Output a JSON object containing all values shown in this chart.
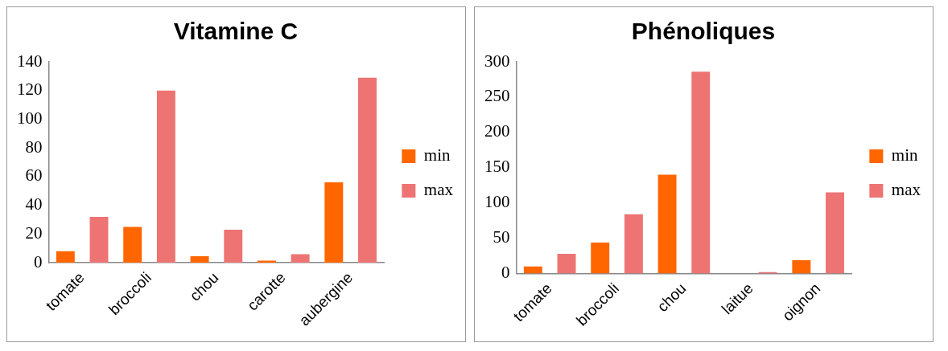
{
  "chart_data": [
    {
      "type": "bar",
      "title": "Vitamine C",
      "categories": [
        "tomate",
        "broccoli",
        "chou",
        "carotte",
        "aubergine"
      ],
      "series": [
        {
          "name": "min",
          "color": "#ff6600",
          "values": [
            8,
            25,
            4.5,
            1.4,
            56
          ]
        },
        {
          "name": "max",
          "color": "#ee7373",
          "values": [
            32,
            120,
            23,
            6,
            129
          ]
        }
      ],
      "ylim": [
        0,
        140
      ],
      "yticks": [
        0,
        20,
        40,
        60,
        80,
        100,
        120,
        140
      ],
      "grid": false,
      "legend": "right"
    },
    {
      "type": "bar",
      "title": "Phénoliques",
      "categories": [
        "tomate",
        "broccoli",
        "chou",
        "laitue",
        "oignon"
      ],
      "series": [
        {
          "name": "min",
          "color": "#ff6600",
          "values": [
            10,
            44,
            140,
            0,
            19
          ]
        },
        {
          "name": "max",
          "color": "#ee7373",
          "values": [
            28,
            84,
            286,
            2,
            115
          ]
        }
      ],
      "ylim": [
        0,
        300
      ],
      "yticks": [
        0,
        50,
        100,
        150,
        200,
        250,
        300
      ],
      "grid": false,
      "legend": "right"
    }
  ]
}
